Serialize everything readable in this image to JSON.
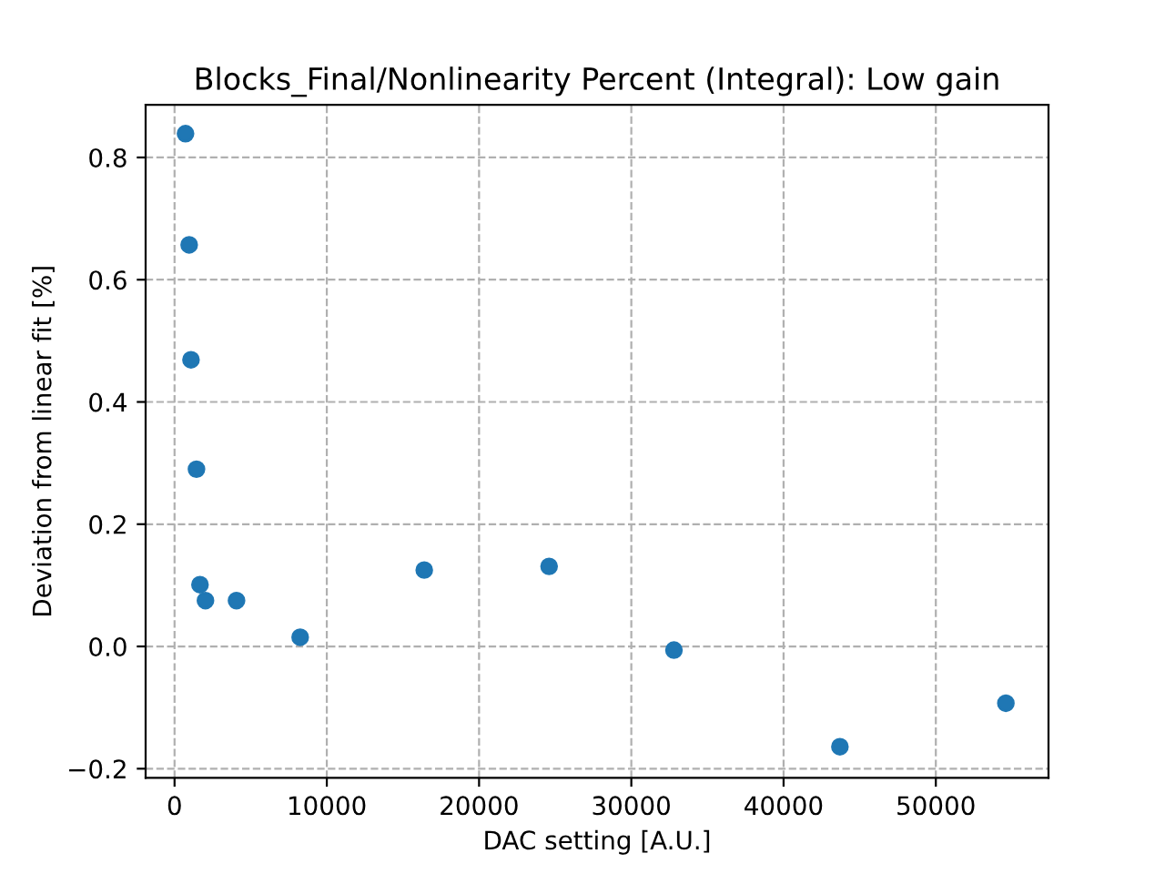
{
  "chart_data": {
    "type": "scatter",
    "title": "Blocks_Final/Nonlinearity Percent (Integral): Low gain",
    "xlabel": "DAC setting [A.U.]",
    "ylabel": "Deviation from linear fit [%]",
    "x": [
      720,
      960,
      1080,
      1440,
      1670,
      2030,
      4070,
      8250,
      16400,
      24600,
      32800,
      43700,
      54600
    ],
    "series": [
      {
        "color": "#1f77b4",
        "values": [
          0.839,
          0.657,
          0.469,
          0.29,
          0.101,
          0.075,
          0.075,
          0.015,
          0.125,
          0.131,
          -0.006,
          -0.164,
          -0.093
        ]
      }
    ],
    "xlim": [
      -1900,
      57400
    ],
    "ylim": [
      -0.215,
      0.886
    ],
    "xticks": [
      0,
      10000,
      20000,
      30000,
      40000,
      50000
    ],
    "yticks": [
      {
        "value": -0.2,
        "label": "−0.2"
      },
      {
        "value": 0.0,
        "label": "0.0"
      },
      {
        "value": 0.2,
        "label": "0.2"
      },
      {
        "value": 0.4,
        "label": "0.4"
      },
      {
        "value": 0.6,
        "label": "0.6"
      },
      {
        "value": 0.8,
        "label": "0.8"
      }
    ],
    "grid": true,
    "line_style": "dashed",
    "marker": "circle"
  }
}
